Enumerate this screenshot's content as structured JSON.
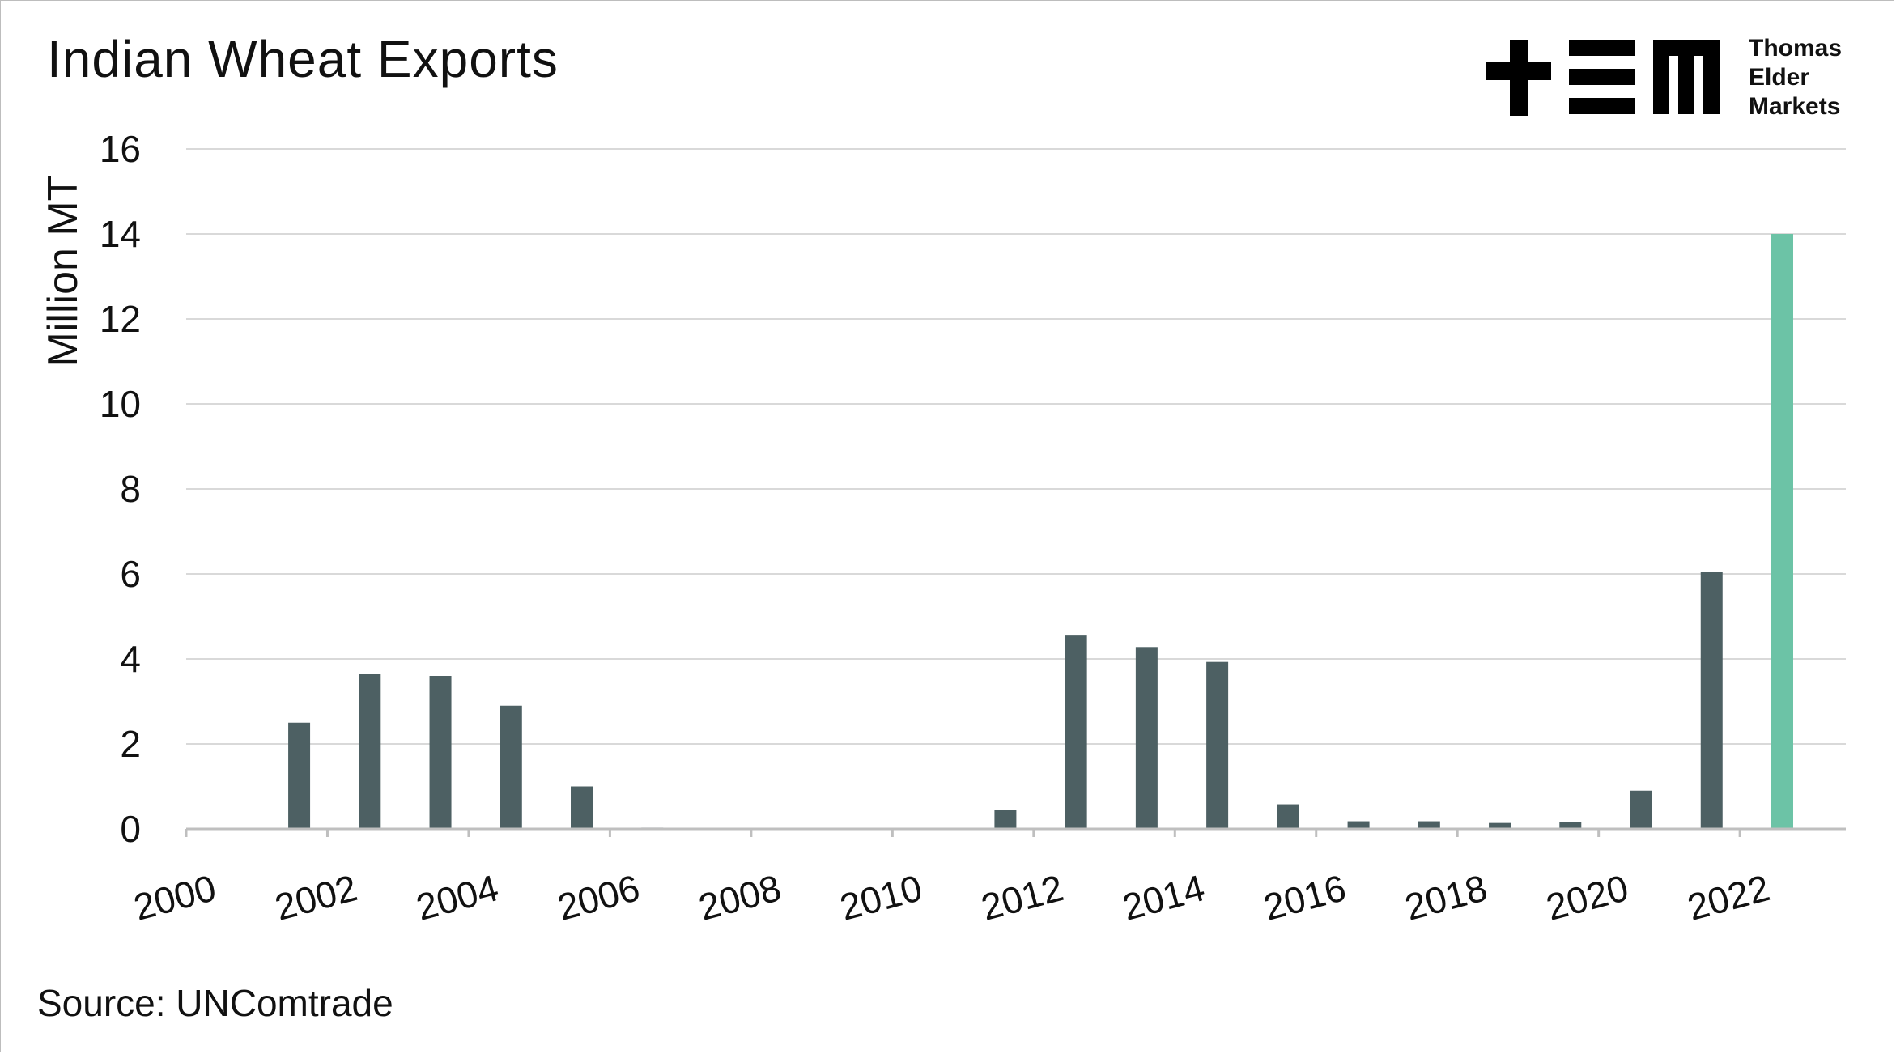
{
  "title": "Indian Wheat Exports",
  "source": "Source: UNComtrade",
  "logo": {
    "icon": "thomas-elder-markets-logo",
    "lines": [
      "Thomas",
      "Elder",
      "Markets"
    ]
  },
  "colors": {
    "bar": "#4d6063",
    "highlight": "#6cc3a6",
    "grid": "#d9d9d9",
    "axis": "#bfbfbf"
  },
  "chart_data": {
    "type": "bar",
    "title": "Indian Wheat Exports",
    "xlabel": "",
    "ylabel": "Million MT",
    "ylim": [
      0,
      16
    ],
    "yticks": [
      0,
      2,
      4,
      6,
      8,
      10,
      12,
      14,
      16
    ],
    "xticks": [
      "2000",
      "2002",
      "2004",
      "2006",
      "2008",
      "2010",
      "2012",
      "2014",
      "2016",
      "2018",
      "2020",
      "2022"
    ],
    "categories": [
      "2000",
      "2001",
      "2002",
      "2003",
      "2004",
      "2005",
      "2006",
      "2007",
      "2008",
      "2009",
      "2010",
      "2011",
      "2012",
      "2013",
      "2014",
      "2015",
      "2016",
      "2017",
      "2018",
      "2019",
      "2020",
      "2021",
      "2022"
    ],
    "values": [
      0,
      2.5,
      3.65,
      3.6,
      2.9,
      1.0,
      0.03,
      0,
      0,
      0,
      0,
      0.45,
      4.55,
      4.28,
      3.93,
      0.58,
      0.18,
      0.18,
      0.14,
      0.16,
      0.9,
      6.05,
      14.0
    ],
    "highlight_category": "2022",
    "grid": true,
    "legend": "none"
  }
}
